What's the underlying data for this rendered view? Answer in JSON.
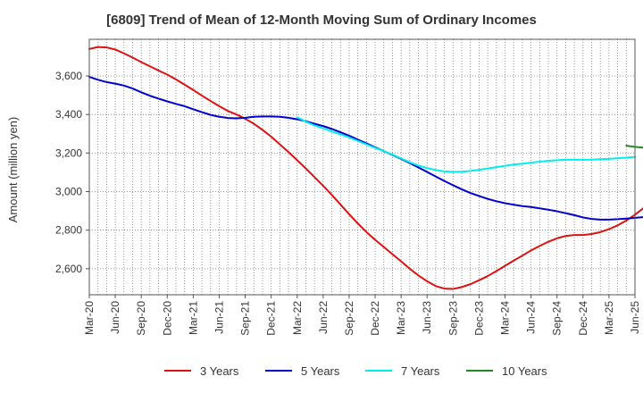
{
  "chart_data": {
    "type": "line",
    "title": "[6809]  Trend of Mean of 12-Month Moving Sum of Ordinary Incomes",
    "xlabel": "",
    "ylabel": "Amount (million yen)",
    "x_ticks": [
      "Mar-20",
      "Jun-20",
      "Sep-20",
      "Dec-20",
      "Mar-21",
      "Jun-21",
      "Sep-21",
      "Dec-21",
      "Mar-22",
      "Jun-22",
      "Sep-22",
      "Dec-22",
      "Mar-23",
      "Jun-23",
      "Sep-23",
      "Dec-23",
      "Mar-24",
      "Jun-24",
      "Sep-24",
      "Dec-24",
      "Mar-25",
      "Jun-25"
    ],
    "y_ticks": [
      2600,
      2800,
      3000,
      3200,
      3400,
      3600
    ],
    "y_tick_labels": [
      "2,600",
      "2,800",
      "3,000",
      "3,200",
      "3,400",
      "3,600"
    ],
    "ylim": [
      2465,
      3790
    ],
    "grid": true,
    "legend_position": "bottom",
    "series": [
      {
        "name": "3 Years",
        "color": "#dd1111",
        "start_index": 0,
        "values": [
          3740,
          3750,
          3748,
          3737,
          3717,
          3695,
          3672,
          3650,
          3628,
          3607,
          3582,
          3555,
          3527,
          3498,
          3470,
          3443,
          3418,
          3400,
          3378,
          3352,
          3320,
          3285,
          3245,
          3205,
          3163,
          3120,
          3075,
          3030,
          2983,
          2933,
          2883,
          2835,
          2790,
          2750,
          2713,
          2675,
          2638,
          2600,
          2565,
          2535,
          2510,
          2497,
          2495,
          2505,
          2520,
          2540,
          2562,
          2588,
          2615,
          2642,
          2668,
          2695,
          2718,
          2740,
          2758,
          2770,
          2775,
          2775,
          2780,
          2790,
          2805,
          2825,
          2850,
          2880,
          2915
        ]
      },
      {
        "name": "5 Years",
        "color": "#0000cc",
        "start_index": 0,
        "values": [
          3595,
          3580,
          3568,
          3560,
          3550,
          3535,
          3515,
          3497,
          3482,
          3468,
          3455,
          3443,
          3427,
          3412,
          3398,
          3388,
          3382,
          3380,
          3383,
          3388,
          3390,
          3390,
          3388,
          3383,
          3375,
          3365,
          3352,
          3340,
          3325,
          3308,
          3290,
          3270,
          3250,
          3230,
          3210,
          3190,
          3170,
          3148,
          3125,
          3102,
          3078,
          3055,
          3033,
          3012,
          2993,
          2977,
          2962,
          2950,
          2940,
          2932,
          2925,
          2920,
          2913,
          2906,
          2898,
          2888,
          2878,
          2866,
          2858,
          2855,
          2855,
          2857,
          2860,
          2864,
          2868
        ]
      },
      {
        "name": "7 Years",
        "color": "#00eeee",
        "start_index": 24,
        "values": [
          3385,
          3363,
          3343,
          3328,
          3312,
          3297,
          3281,
          3263,
          3245,
          3227,
          3210,
          3192,
          3172,
          3152,
          3135,
          3122,
          3112,
          3105,
          3102,
          3103,
          3107,
          3113,
          3120,
          3127,
          3134,
          3140,
          3145,
          3150,
          3155,
          3160,
          3163,
          3165,
          3166,
          3165,
          3166,
          3168,
          3170,
          3173,
          3176,
          3180
        ]
      },
      {
        "name": "10 Years",
        "color": "#228822",
        "start_index": 62,
        "values": [
          3238,
          3232,
          3228
        ]
      }
    ]
  }
}
